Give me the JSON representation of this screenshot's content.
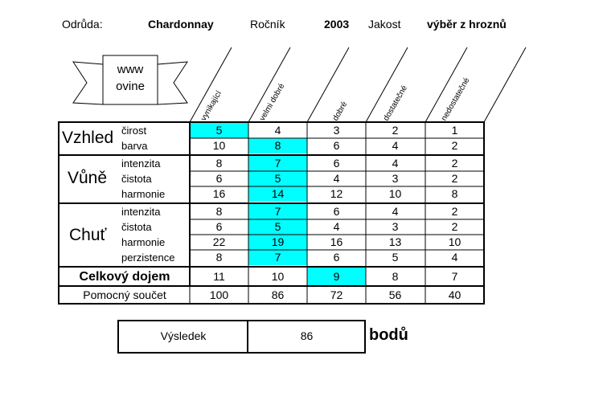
{
  "header": {
    "variety_label": "Odrůda:",
    "variety_value": "Chardonnay",
    "year_label": "Ročník",
    "year_value": "2003",
    "quality_label": "Jakost",
    "quality_value": "výběr z hroznů"
  },
  "logo": {
    "line1": "www",
    "line2": "ovine"
  },
  "columns": [
    "vynikající",
    "velmi dobré",
    "dobré",
    "dostatečné",
    "nedostatečné"
  ],
  "categories": {
    "vzhled": "Vzhled",
    "vune": "Vůně",
    "chut": "Chuť",
    "celkovy": "Celkový dojem",
    "pomocny": "Pomocný součet"
  },
  "rows": [
    {
      "label": "čirost",
      "values": [
        "5",
        "4",
        "3",
        "2",
        "1"
      ]
    },
    {
      "label": "barva",
      "values": [
        "10",
        "8",
        "6",
        "4",
        "2"
      ]
    },
    {
      "label": "intenzita",
      "values": [
        "8",
        "7",
        "6",
        "4",
        "2"
      ]
    },
    {
      "label": "čistota",
      "values": [
        "6",
        "5",
        "4",
        "3",
        "2"
      ]
    },
    {
      "label": "harmonie",
      "values": [
        "16",
        "14",
        "12",
        "10",
        "8"
      ]
    },
    {
      "label": "intenzita",
      "values": [
        "8",
        "7",
        "6",
        "4",
        "2"
      ]
    },
    {
      "label": "čistota",
      "values": [
        "6",
        "5",
        "4",
        "3",
        "2"
      ]
    },
    {
      "label": "harmonie",
      "values": [
        "22",
        "19",
        "16",
        "13",
        "10"
      ]
    },
    {
      "label": "perzistence",
      "values": [
        "8",
        "7",
        "6",
        "5",
        "4"
      ]
    }
  ],
  "overall": {
    "values": [
      "11",
      "10",
      "9",
      "8",
      "7"
    ]
  },
  "subtotal": {
    "values": [
      "100",
      "86",
      "72",
      "56",
      "40"
    ]
  },
  "highlight_color": "#00ffff",
  "selected": [
    0,
    1,
    1,
    1,
    1,
    1,
    1,
    1,
    1,
    2
  ],
  "result": {
    "label": "Výsledek",
    "value": "86",
    "unit": "bodů"
  }
}
